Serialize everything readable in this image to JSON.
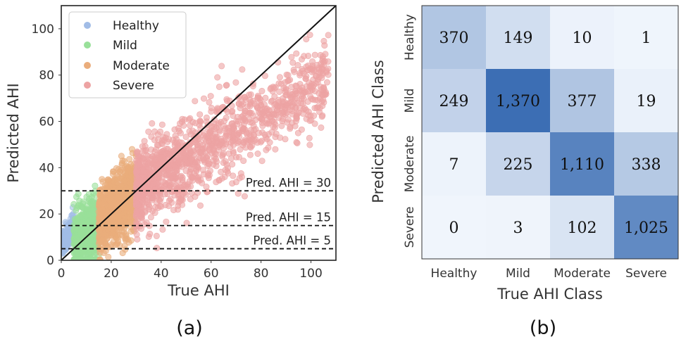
{
  "chart_data": [
    {
      "type": "scatter",
      "caption": "(a)",
      "xlabel": "True AHI",
      "ylabel": "Predicted AHI",
      "xlim": [
        0,
        110
      ],
      "ylim": [
        0,
        110
      ],
      "xticks": [
        0,
        20,
        40,
        60,
        80,
        100
      ],
      "yticks": [
        0,
        20,
        40,
        60,
        80,
        100
      ],
      "grid": false,
      "legend_position": "top-left",
      "series": [
        {
          "name": "Healthy",
          "color": "#a1bce6",
          "x_range": [
            0,
            5
          ],
          "values_approx": "predicted AHI about 0-22"
        },
        {
          "name": "Mild",
          "color": "#99e09a",
          "x_range": [
            5,
            15
          ],
          "values_approx": "predicted AHI about 0-42"
        },
        {
          "name": "Moderate",
          "color": "#eaad7c",
          "x_range": [
            15,
            30
          ],
          "values_approx": "predicted AHI about 3-58"
        },
        {
          "name": "Severe",
          "color": "#eda3a3",
          "x_range": [
            30,
            107
          ],
          "values_approx": "predicted AHI about 4-75"
        }
      ],
      "reference_line": {
        "type": "identity",
        "from": [
          0,
          0
        ],
        "to": [
          110,
          110
        ]
      },
      "hlines": [
        {
          "y": 30,
          "label": "Pred. AHI = 30"
        },
        {
          "y": 15,
          "label": "Pred. AHI = 15"
        },
        {
          "y": 5,
          "label": "Pred. AHI = 5"
        }
      ]
    },
    {
      "type": "heatmap",
      "caption": "(b)",
      "xlabel": "True AHI Class",
      "ylabel": "Predicted AHI Class",
      "x_categories": [
        "Healthy",
        "Mild",
        "Moderate",
        "Severe"
      ],
      "y_categories": [
        "Healthy",
        "Mild",
        "Moderate",
        "Severe"
      ],
      "values": [
        [
          370,
          149,
          10,
          1
        ],
        [
          249,
          1370,
          377,
          19
        ],
        [
          7,
          225,
          1110,
          338
        ],
        [
          0,
          3,
          102,
          1025
        ]
      ],
      "labels": [
        [
          "370",
          "149",
          "10",
          "1"
        ],
        [
          "249",
          "1,370",
          "377",
          "19"
        ],
        [
          "7",
          "225",
          "1,110",
          "338"
        ],
        [
          "0",
          "3",
          "102",
          "1,025"
        ]
      ],
      "colormap": "Blues"
    }
  ]
}
